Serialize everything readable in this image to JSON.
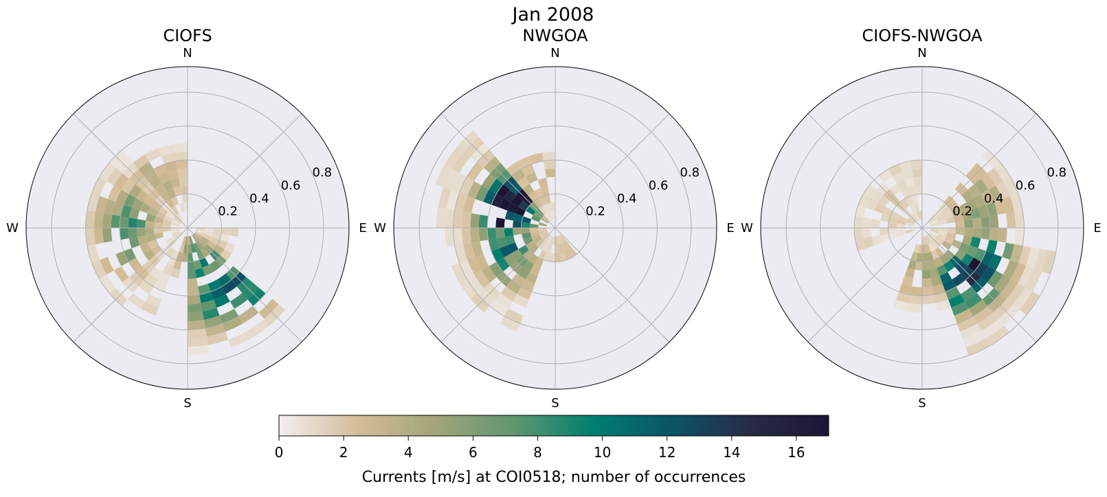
{
  "figure": {
    "suptitle": "Jan 2008"
  },
  "chart_data": [
    {
      "type": "heatmap",
      "subtype": "polar-rose-histogram",
      "title": "CIOFS",
      "compass": [
        "N",
        "E",
        "S",
        "W"
      ],
      "r_ticks": [
        "0.2",
        "0.4",
        "0.6",
        "0.8"
      ],
      "rlim": [
        0,
        0.95
      ],
      "grid": true,
      "direction_bin_deg": 10,
      "speed_bin": 0.05,
      "clusters": [
        {
          "dir_from": 130,
          "dir_to": 180,
          "r_from": 0.05,
          "r_to": 0.75,
          "peak": 11,
          "peak_dir": 140,
          "peak_r": 0.45
        },
        {
          "dir_from": 200,
          "dir_to": 330,
          "r_from": 0.05,
          "r_to": 0.6,
          "peak": 7,
          "peak_dir": 270,
          "peak_r": 0.35
        },
        {
          "dir_from": 90,
          "dir_to": 200,
          "r_from": 0.05,
          "r_to": 0.3,
          "peak": 6,
          "peak_dir": 160,
          "peak_r": 0.15
        },
        {
          "dir_from": 320,
          "dir_to": 360,
          "r_from": 0.1,
          "r_to": 0.5,
          "peak": 3,
          "peak_dir": 330,
          "peak_r": 0.3
        }
      ]
    },
    {
      "type": "heatmap",
      "subtype": "polar-rose-histogram",
      "title": "NWGOA",
      "compass": [
        "N",
        "E",
        "S",
        "W"
      ],
      "r_ticks": [
        "0.2",
        "0.4",
        "0.6",
        "0.8"
      ],
      "rlim": [
        0,
        0.95
      ],
      "grid": true,
      "direction_bin_deg": 10,
      "speed_bin": 0.05,
      "clusters": [
        {
          "dir_from": 270,
          "dir_to": 320,
          "r_from": 0.05,
          "r_to": 0.75,
          "peak": 17,
          "peak_dir": 295,
          "peak_r": 0.3
        },
        {
          "dir_from": 200,
          "dir_to": 270,
          "r_from": 0.05,
          "r_to": 0.65,
          "peak": 9,
          "peak_dir": 250,
          "peak_r": 0.3
        },
        {
          "dir_from": 320,
          "dir_to": 360,
          "r_from": 0.05,
          "r_to": 0.45,
          "peak": 3,
          "peak_dir": 330,
          "peak_r": 0.3
        },
        {
          "dir_from": 140,
          "dir_to": 200,
          "r_from": 0.05,
          "r_to": 0.2,
          "peak": 2,
          "peak_dir": 160,
          "peak_r": 0.1
        }
      ]
    },
    {
      "type": "heatmap",
      "subtype": "polar-rose-histogram",
      "title": "CIOFS-NWGOA",
      "compass": [
        "N",
        "E",
        "S",
        "W"
      ],
      "r_ticks": [
        "0.2",
        "0.4",
        "0.6",
        "0.8"
      ],
      "rlim": [
        0,
        0.95
      ],
      "grid": true,
      "direction_bin_deg": 10,
      "speed_bin": 0.05,
      "clusters": [
        {
          "dir_from": 100,
          "dir_to": 160,
          "r_from": 0.05,
          "r_to": 0.8,
          "peak": 13,
          "peak_dir": 132,
          "peak_r": 0.4
        },
        {
          "dir_from": 160,
          "dir_to": 200,
          "r_from": 0.05,
          "r_to": 0.5,
          "peak": 4,
          "peak_dir": 175,
          "peak_r": 0.25
        },
        {
          "dir_from": 40,
          "dir_to": 100,
          "r_from": 0.05,
          "r_to": 0.6,
          "peak": 5,
          "peak_dir": 75,
          "peak_r": 0.35
        },
        {
          "dir_from": 250,
          "dir_to": 360,
          "r_from": 0.05,
          "r_to": 0.4,
          "peak": 2,
          "peak_dir": 300,
          "peak_r": 0.2
        }
      ]
    }
  ],
  "colorbar": {
    "label": "Currents [m/s] at COI0518; number of occurrences",
    "min": 0,
    "max": 17,
    "ticks": [
      "0",
      "2",
      "4",
      "6",
      "8",
      "10",
      "12",
      "14",
      "16"
    ],
    "colormap": [
      "#f2eff0",
      "#d3bc97",
      "#a1a478",
      "#5f9670",
      "#007f6f",
      "#0b5467",
      "#272b45",
      "#1c1535"
    ]
  },
  "colors": {
    "axes_face": "#ebebf1",
    "grid": "#b0b0b0",
    "spine": "#000000"
  }
}
